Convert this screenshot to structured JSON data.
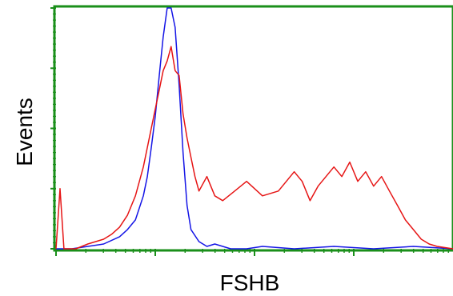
{
  "chart_data": {
    "type": "line",
    "xlabel": "FSHB",
    "ylabel": "Events",
    "grid": false,
    "frame_color": "#1a8f1a",
    "series": [
      {
        "color": "#1515e6",
        "x": [
          0,
          4,
          8,
          12,
          16,
          18,
          20,
          22,
          23,
          24,
          25,
          26,
          27,
          28,
          29,
          30,
          31,
          32,
          33,
          34,
          36,
          38,
          40,
          42,
          44,
          48,
          52,
          60,
          70,
          80,
          90,
          100
        ],
        "y": [
          0,
          0,
          1,
          2,
          5,
          8,
          12,
          22,
          30,
          42,
          55,
          72,
          88,
          100,
          100,
          92,
          68,
          40,
          18,
          8,
          3,
          1,
          2,
          1,
          0,
          0,
          1,
          0,
          1,
          0,
          1,
          0
        ]
      },
      {
        "color": "#e61515",
        "x": [
          0,
          1,
          2,
          5,
          8,
          10,
          12,
          14,
          16,
          18,
          20,
          22,
          24,
          26,
          27,
          28,
          29,
          30,
          31,
          32,
          33,
          34,
          35,
          36,
          38,
          40,
          42,
          45,
          48,
          52,
          56,
          60,
          62,
          64,
          66,
          68,
          70,
          72,
          74,
          76,
          78,
          80,
          82,
          84,
          86,
          88,
          90,
          92,
          94,
          96,
          100
        ],
        "y": [
          0,
          25,
          0,
          0,
          2,
          3,
          4,
          6,
          9,
          14,
          22,
          34,
          50,
          66,
          74,
          78,
          84,
          74,
          72,
          56,
          46,
          38,
          30,
          24,
          30,
          22,
          20,
          24,
          28,
          22,
          24,
          32,
          28,
          20,
          26,
          30,
          34,
          30,
          36,
          28,
          32,
          26,
          30,
          24,
          18,
          12,
          8,
          4,
          2,
          1,
          0
        ]
      }
    ]
  }
}
